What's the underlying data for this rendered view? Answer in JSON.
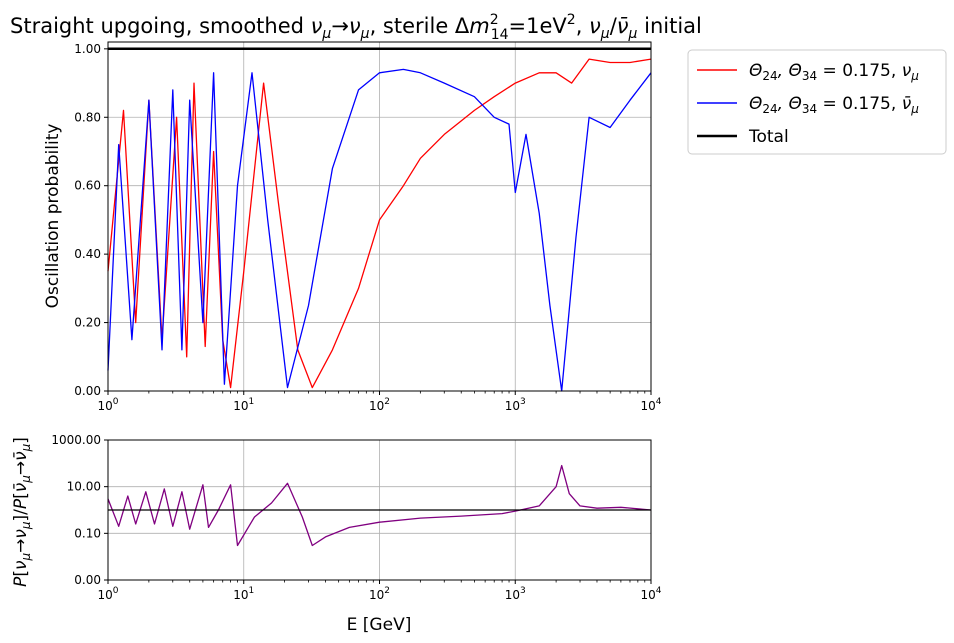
{
  "chart_data": [
    {
      "type": "line",
      "title": "Straight upgoing, smoothed ν_μ→ν_μ, sterile Δm²₁₄=1eV², ν_μ/ν̄_μ initial",
      "title_parts": {
        "p1": "Straight upgoing, smoothed ",
        "p2": "ν",
        "p3": "μ",
        "p4": "→",
        "p5": "ν",
        "p6": "μ",
        "p7": ", sterile Δ",
        "p8": "m",
        "p9": "2",
        "p10": "14",
        "p11": "=1eV",
        "p12": "2",
        "p13": ", ",
        "p14": "ν",
        "p15": "μ",
        "p16": "/",
        "p17": "ν̄",
        "p18": "μ",
        "p19": " initial"
      },
      "xlabel": "",
      "ylabel": "Oscillation probability",
      "xscale": "log",
      "xlim": [
        1,
        10000
      ],
      "ylim": [
        0,
        1.02
      ],
      "grid": true,
      "legend_placement": "outside-top-right",
      "x_tick_labels": [
        {
          "base": "10",
          "exp": "0"
        },
        {
          "base": "10",
          "exp": "1"
        },
        {
          "base": "10",
          "exp": "2"
        },
        {
          "base": "10",
          "exp": "3"
        },
        {
          "base": "10",
          "exp": "4"
        }
      ],
      "y_ticks": [
        0,
        0.2,
        0.4,
        0.6,
        0.8,
        1.0
      ],
      "y_tick_labels": [
        "0.00",
        "0.20",
        "0.40",
        "0.60",
        "0.80",
        "1.00"
      ],
      "series": [
        {
          "name": "Θ24, Θ34 = 0.175, ν_μ",
          "legend_parts": {
            "a": "Θ",
            "b": "24",
            "c": ", Θ",
            "d": "34",
            "e": " = 0.175, ",
            "f": "ν",
            "g": "μ"
          },
          "color": "#ff0000",
          "points": [
            [
              1.0,
              0.35
            ],
            [
              1.3,
              0.82
            ],
            [
              1.6,
              0.2
            ],
            [
              2.0,
              0.85
            ],
            [
              2.5,
              0.15
            ],
            [
              3.2,
              0.8
            ],
            [
              3.8,
              0.1
            ],
            [
              4.3,
              0.9
            ],
            [
              5.2,
              0.13
            ],
            [
              6.0,
              0.7
            ],
            [
              7.0,
              0.15
            ],
            [
              8.0,
              0.01
            ],
            [
              10.0,
              0.35
            ],
            [
              14.0,
              0.9
            ],
            [
              18.0,
              0.55
            ],
            [
              25.0,
              0.12
            ],
            [
              32.0,
              0.01
            ],
            [
              45.0,
              0.12
            ],
            [
              70.0,
              0.3
            ],
            [
              100.0,
              0.5
            ],
            [
              150.0,
              0.6
            ],
            [
              200.0,
              0.68
            ],
            [
              300.0,
              0.75
            ],
            [
              500.0,
              0.82
            ],
            [
              700.0,
              0.86
            ],
            [
              1000.0,
              0.9
            ],
            [
              1500.0,
              0.93
            ],
            [
              2000.0,
              0.93
            ],
            [
              2600.0,
              0.9
            ],
            [
              3500.0,
              0.97
            ],
            [
              5000.0,
              0.96
            ],
            [
              7000.0,
              0.96
            ],
            [
              10000.0,
              0.97
            ]
          ]
        },
        {
          "name": "Θ24, Θ34 = 0.175, ν̄_μ",
          "legend_parts": {
            "a": "Θ",
            "b": "24",
            "c": ", Θ",
            "d": "34",
            "e": " = 0.175, ",
            "f": "ν̄",
            "g": "μ"
          },
          "color": "#0000ff",
          "points": [
            [
              1.0,
              0.06
            ],
            [
              1.2,
              0.72
            ],
            [
              1.5,
              0.15
            ],
            [
              2.0,
              0.85
            ],
            [
              2.5,
              0.12
            ],
            [
              3.0,
              0.88
            ],
            [
              3.5,
              0.12
            ],
            [
              4.0,
              0.85
            ],
            [
              5.0,
              0.2
            ],
            [
              6.0,
              0.93
            ],
            [
              7.2,
              0.02
            ],
            [
              9.0,
              0.6
            ],
            [
              11.5,
              0.93
            ],
            [
              15.0,
              0.5
            ],
            [
              21.0,
              0.01
            ],
            [
              30.0,
              0.25
            ],
            [
              45.0,
              0.65
            ],
            [
              70.0,
              0.88
            ],
            [
              100.0,
              0.93
            ],
            [
              150.0,
              0.94
            ],
            [
              200.0,
              0.93
            ],
            [
              300.0,
              0.9
            ],
            [
              500.0,
              0.86
            ],
            [
              700.0,
              0.8
            ],
            [
              900.0,
              0.78
            ],
            [
              1000.0,
              0.58
            ],
            [
              1200.0,
              0.75
            ],
            [
              1500.0,
              0.52
            ],
            [
              1800.0,
              0.25
            ],
            [
              2200.0,
              0.0
            ],
            [
              2800.0,
              0.45
            ],
            [
              3500.0,
              0.8
            ],
            [
              5000.0,
              0.77
            ],
            [
              7000.0,
              0.85
            ],
            [
              10000.0,
              0.93
            ]
          ]
        },
        {
          "name": "Total",
          "legend_parts": {
            "a": "Total"
          },
          "color": "#000000",
          "points": [
            [
              1.0,
              1.0
            ],
            [
              10000.0,
              1.0
            ]
          ]
        }
      ]
    },
    {
      "type": "line",
      "title": "",
      "xlabel": "E [GeV]",
      "ylabel": "P[ν_μ→ν_μ]/P[ν̄_μ→ν̄_μ]",
      "ylabel_parts": {
        "a": "P",
        "b": "[",
        "c": "ν",
        "d": "μ",
        "e": "→",
        "f": "ν",
        "g": "μ",
        "h": "]/",
        "i": "P",
        "j": "[",
        "k": "ν̄",
        "l": "μ",
        "m": "→",
        "n": "ν̄",
        "o": "μ",
        "p": "]"
      },
      "xscale": "log",
      "yscale": "log",
      "xlim": [
        1,
        10000
      ],
      "ylim": [
        0.001,
        1000
      ],
      "grid": true,
      "x_tick_labels": [
        {
          "base": "10",
          "exp": "0"
        },
        {
          "base": "10",
          "exp": "1"
        },
        {
          "base": "10",
          "exp": "2"
        },
        {
          "base": "10",
          "exp": "3"
        },
        {
          "base": "10",
          "exp": "4"
        }
      ],
      "y_ticks": [
        0.001,
        0.1,
        10,
        1000
      ],
      "y_tick_labels": [
        "0.00",
        "0.10",
        "10.00",
        "1000.00"
      ],
      "series": [
        {
          "name": "",
          "color": "#800080",
          "points": [
            [
              1.0,
              3.0
            ],
            [
              1.2,
              0.2
            ],
            [
              1.4,
              4.0
            ],
            [
              1.6,
              0.25
            ],
            [
              1.9,
              6.0
            ],
            [
              2.2,
              0.25
            ],
            [
              2.6,
              8.0
            ],
            [
              3.0,
              0.2
            ],
            [
              3.5,
              6.0
            ],
            [
              4.0,
              0.15
            ],
            [
              5.0,
              12.0
            ],
            [
              5.5,
              0.18
            ],
            [
              6.5,
              1.0
            ],
            [
              8.0,
              12.0
            ],
            [
              9.0,
              0.03
            ],
            [
              12.0,
              0.5
            ],
            [
              16.0,
              2.0
            ],
            [
              21.0,
              14.0
            ],
            [
              27.0,
              0.5
            ],
            [
              32.0,
              0.03
            ],
            [
              40.0,
              0.07
            ],
            [
              60.0,
              0.18
            ],
            [
              100.0,
              0.3
            ],
            [
              200.0,
              0.45
            ],
            [
              400.0,
              0.55
            ],
            [
              800.0,
              0.7
            ],
            [
              1000.0,
              0.9
            ],
            [
              1500.0,
              1.5
            ],
            [
              2000.0,
              10.0
            ],
            [
              2200.0,
              80.0
            ],
            [
              2500.0,
              5.0
            ],
            [
              3000.0,
              1.5
            ],
            [
              4000.0,
              1.2
            ],
            [
              6000.0,
              1.3
            ],
            [
              10000.0,
              1.0
            ]
          ]
        },
        {
          "name": "",
          "color": "#000000",
          "points": [
            [
              1.0,
              1.0
            ],
            [
              10000.0,
              1.0
            ]
          ]
        }
      ]
    }
  ]
}
